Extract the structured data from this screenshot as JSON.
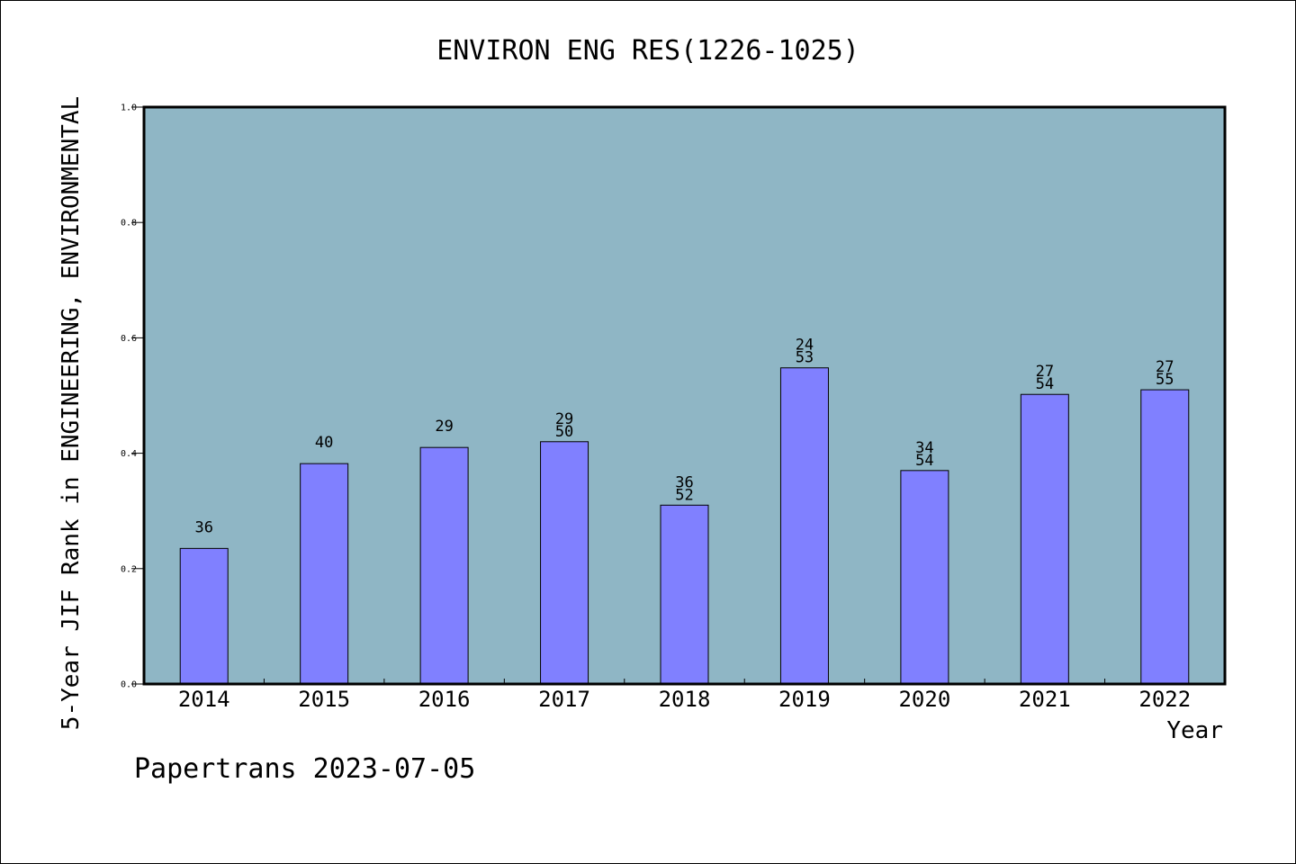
{
  "chart_data": {
    "type": "bar",
    "title": "ENVIRON ENG RES(1226-1025)",
    "xlabel": "Year",
    "ylabel": "5-Year JIF Rank in ENGINEERING, ENVIRONMENTAL",
    "ylim": [
      0.0,
      1.0
    ],
    "yticks": [
      "0.0",
      "0.2",
      "0.4",
      "0.6",
      "0.8",
      "1.0"
    ],
    "categories": [
      "2014",
      "2015",
      "2016",
      "2017",
      "2018",
      "2019",
      "2020",
      "2021",
      "2022"
    ],
    "values": [
      0.235,
      0.382,
      0.41,
      0.42,
      0.31,
      0.548,
      0.37,
      0.502,
      0.51
    ],
    "bar_labels": [
      [
        "36"
      ],
      [
        "40"
      ],
      [
        "29"
      ],
      [
        "29",
        "50"
      ],
      [
        "36",
        "52"
      ],
      [
        "24",
        "53"
      ],
      [
        "34",
        "54"
      ],
      [
        "27",
        "54"
      ],
      [
        "27",
        "55"
      ]
    ],
    "grid": false,
    "legend": "none",
    "colors": {
      "plot_background": "#8fb6c5",
      "bar_fill": "#8080ff",
      "bar_edge": "#000000"
    }
  },
  "footer": {
    "text": "Papertrans 2023-07-05"
  }
}
